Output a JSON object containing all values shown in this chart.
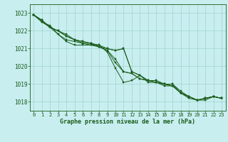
{
  "title": "Graphe pression niveau de la mer (hPa)",
  "background_color": "#c8eef0",
  "plot_bg_color": "#c8eef0",
  "grid_color": "#a0d4cc",
  "line_color": "#1a5c1a",
  "marker_color": "#1a5c1a",
  "xlim": [
    -0.5,
    23.5
  ],
  "ylim": [
    1017.5,
    1023.5
  ],
  "yticks": [
    1018,
    1019,
    1020,
    1021,
    1022,
    1023
  ],
  "xticks": [
    0,
    1,
    2,
    3,
    4,
    5,
    6,
    7,
    8,
    9,
    10,
    11,
    12,
    13,
    14,
    15,
    16,
    17,
    18,
    19,
    20,
    21,
    22,
    23
  ],
  "series": [
    [
      1022.9,
      1022.6,
      1022.2,
      1022.0,
      1021.8,
      1021.5,
      1021.3,
      1021.2,
      1021.2,
      1020.8,
      1019.9,
      1019.1,
      1019.2,
      1019.5,
      1019.1,
      1019.1,
      1019.0,
      1018.9,
      1018.5,
      1018.3,
      1018.1,
      1018.2,
      1018.3,
      1018.2
    ],
    [
      1022.9,
      1022.5,
      1022.3,
      1021.8,
      1021.5,
      1021.4,
      1021.3,
      1021.3,
      1021.1,
      1020.9,
      1020.4,
      1019.7,
      1019.6,
      1019.3,
      1019.2,
      1019.1,
      1018.9,
      1018.9,
      1018.5,
      1018.3,
      1018.1,
      1018.2,
      1018.3,
      1018.2
    ],
    [
      1022.9,
      1022.5,
      1022.2,
      1021.8,
      1021.4,
      1021.2,
      1021.2,
      1021.2,
      1021.1,
      1020.9,
      1020.2,
      1019.7,
      1019.6,
      1019.3,
      1019.2,
      1019.1,
      1019.0,
      1018.9,
      1018.5,
      1018.3,
      1018.1,
      1018.2,
      1018.3,
      1018.2
    ],
    [
      1022.9,
      1022.6,
      1022.2,
      1022.0,
      1021.7,
      1021.5,
      1021.4,
      1021.3,
      1021.2,
      1021.0,
      1020.9,
      1021.0,
      1019.7,
      1019.5,
      1019.2,
      1019.2,
      1019.0,
      1019.0,
      1018.6,
      1018.3,
      1018.1,
      1018.2,
      1018.3,
      1018.2
    ],
    [
      1022.9,
      1022.6,
      1022.2,
      1022.0,
      1021.7,
      1021.5,
      1021.4,
      1021.3,
      1021.1,
      1021.0,
      1020.9,
      1021.0,
      1019.7,
      1019.5,
      1019.2,
      1019.2,
      1019.0,
      1019.0,
      1018.5,
      1018.2,
      1018.1,
      1018.1,
      1018.3,
      1018.2
    ]
  ]
}
